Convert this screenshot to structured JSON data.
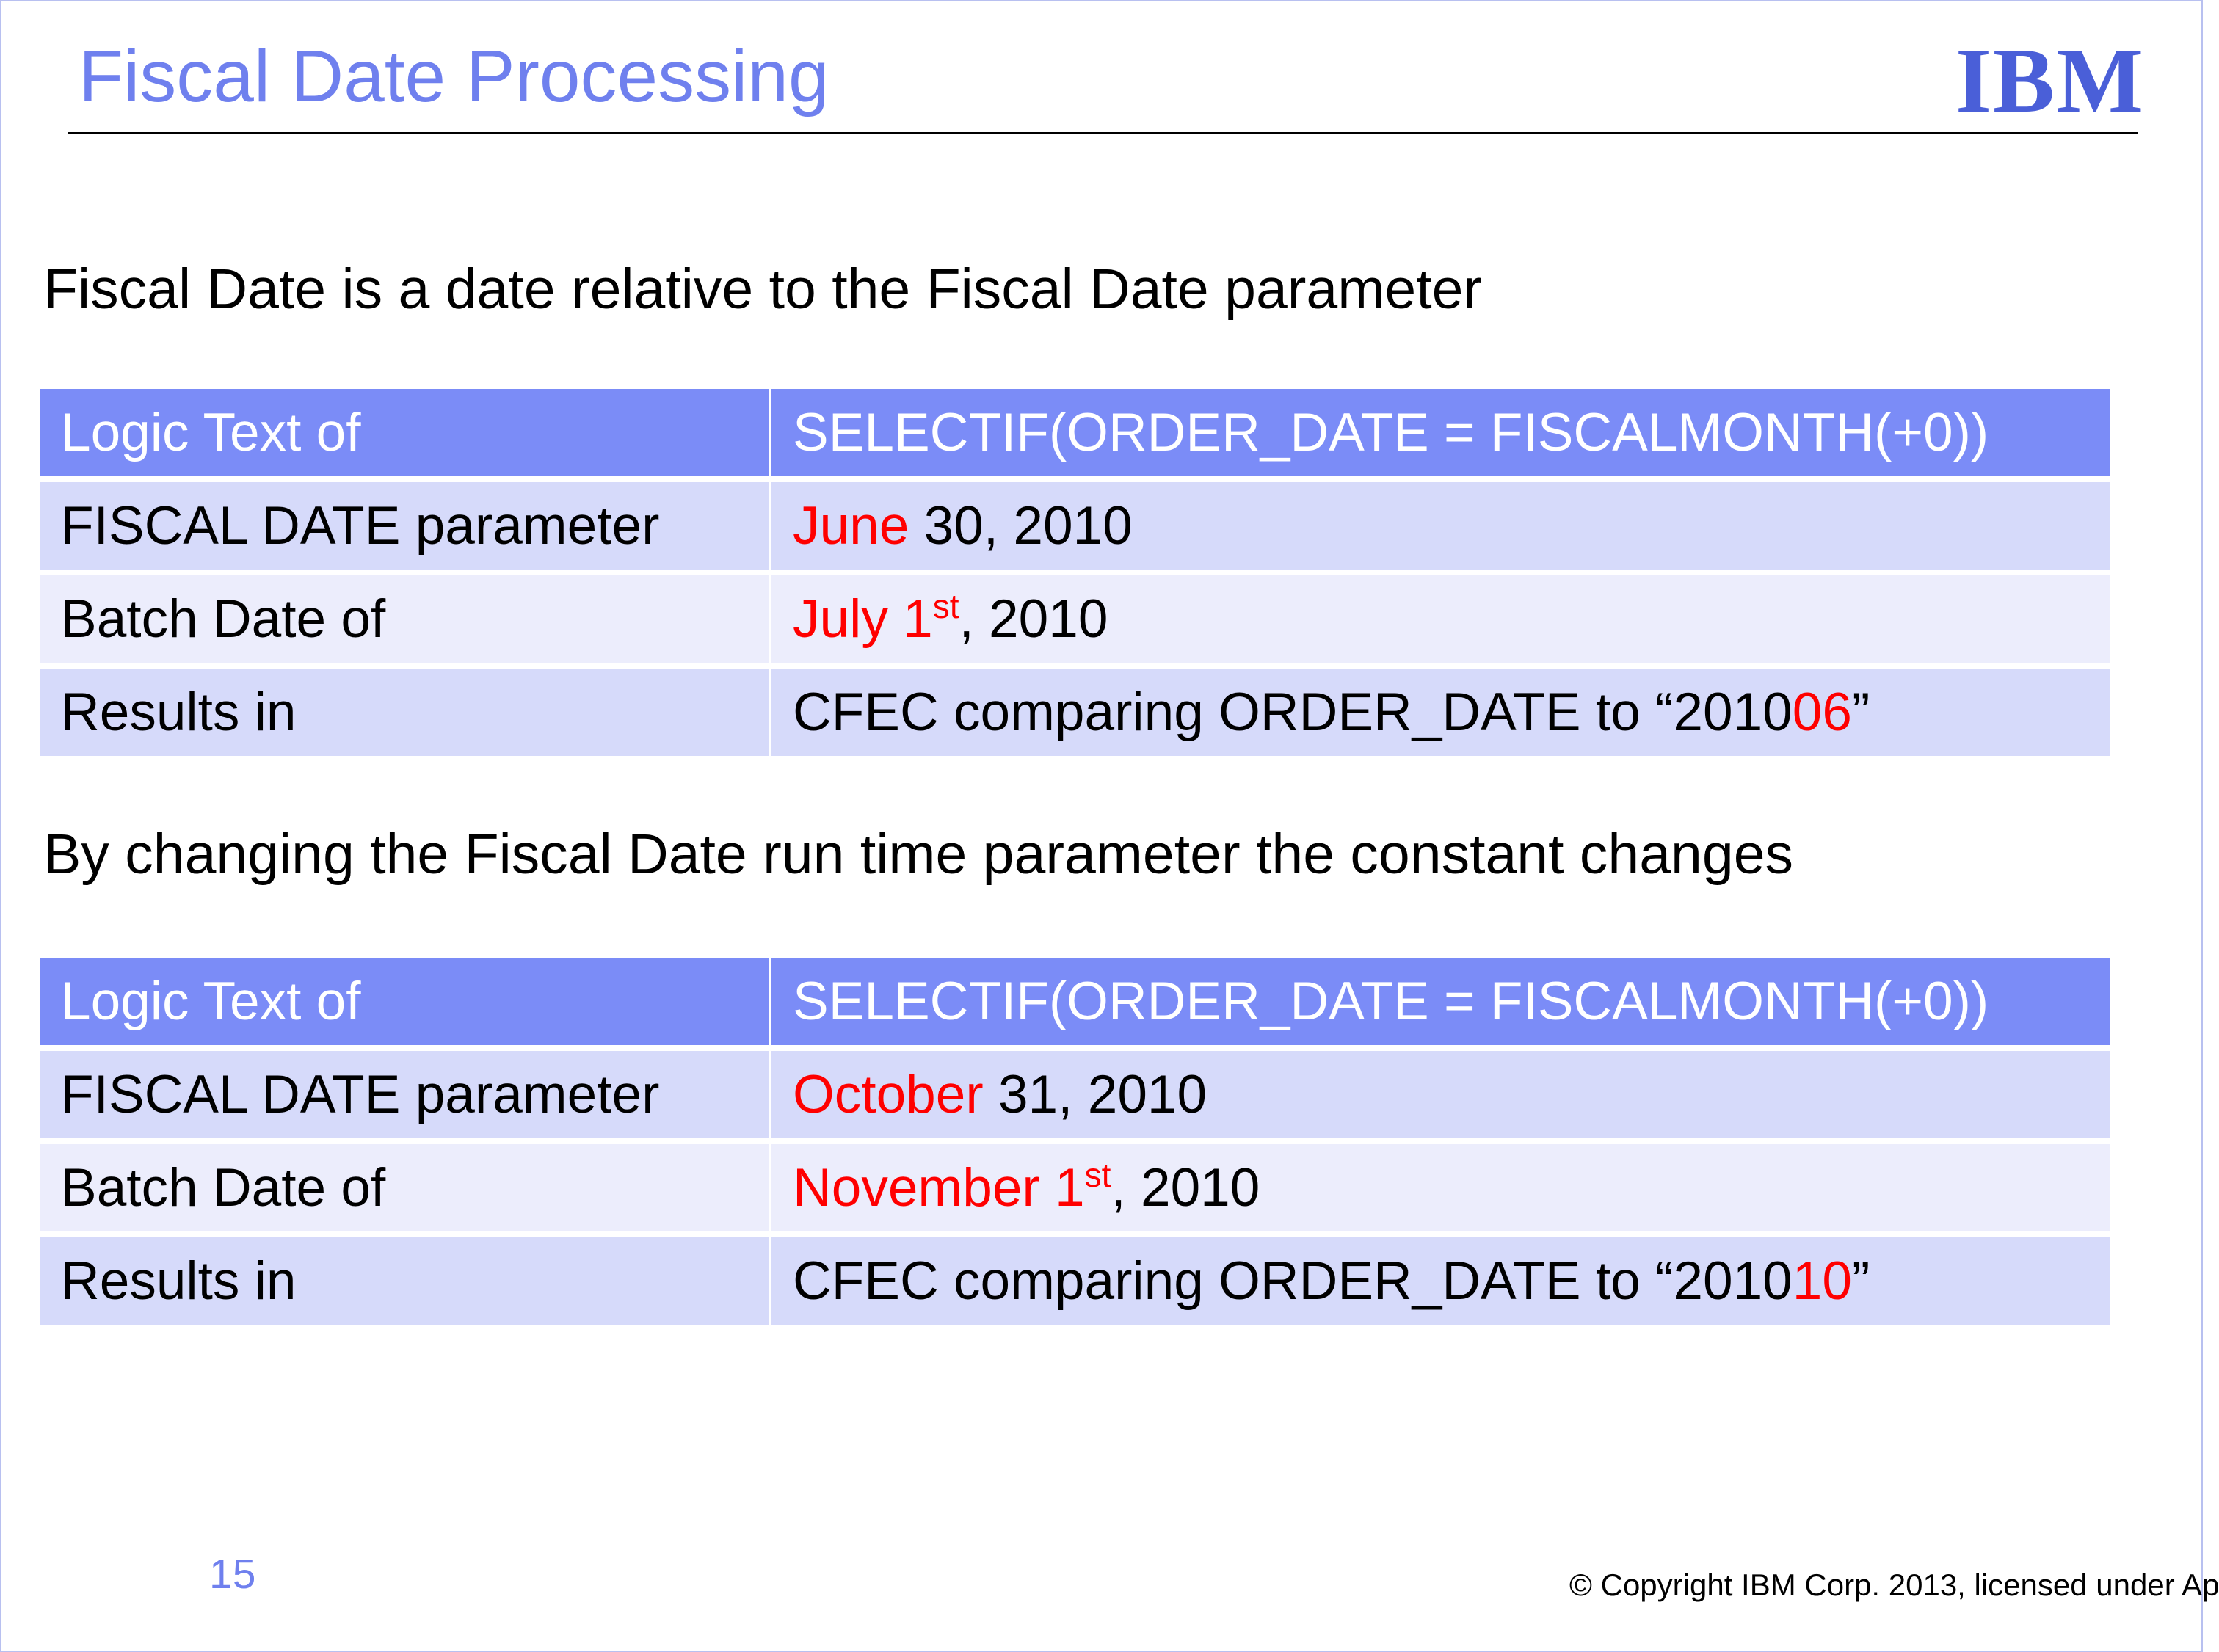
{
  "header": {
    "title": "Fiscal Date Processing",
    "logo": "IBM"
  },
  "paragraphs": [
    "Fiscal Date is a date relative to the Fiscal Date parameter",
    "By changing the Fiscal Date run time parameter the constant changes"
  ],
  "tables": [
    {
      "rows": [
        [
          [
            {
              "text": "Logic Text of"
            }
          ],
          [
            {
              "text": "SELECTIF(ORDER_DATE = FISCALMONTH(+0))"
            }
          ]
        ],
        [
          [
            {
              "text": "FISCAL DATE parameter"
            }
          ],
          [
            {
              "text": "June",
              "color": "#ff0000"
            },
            {
              "text": " 30, 2010"
            }
          ]
        ],
        [
          [
            {
              "text": "Batch Date of"
            }
          ],
          [
            {
              "text": "July 1",
              "color": "#ff0000"
            },
            {
              "text": "st",
              "color": "#ff0000",
              "sup": true
            },
            {
              "text": ", 2010"
            }
          ]
        ],
        [
          [
            {
              "text": "Results in"
            }
          ],
          [
            {
              "text": "CFEC comparing ORDER_DATE to “2010"
            },
            {
              "text": "06",
              "color": "#ff0000"
            },
            {
              "text": "”"
            }
          ]
        ]
      ]
    },
    {
      "rows": [
        [
          [
            {
              "text": "Logic Text of"
            }
          ],
          [
            {
              "text": "SELECTIF(ORDER_DATE = FISCALMONTH(+0))"
            }
          ]
        ],
        [
          [
            {
              "text": "FISCAL DATE parameter"
            }
          ],
          [
            {
              "text": "October",
              "color": "#ff0000"
            },
            {
              "text": " 31, 2010"
            }
          ]
        ],
        [
          [
            {
              "text": "Batch Date of"
            }
          ],
          [
            {
              "text": "November 1",
              "color": "#ff0000"
            },
            {
              "text": "st",
              "color": "#ff0000",
              "sup": true
            },
            {
              "text": ", 2010"
            }
          ]
        ],
        [
          [
            {
              "text": "Results in"
            }
          ],
          [
            {
              "text": "CFEC comparing ORDER_DATE to “2010"
            },
            {
              "text": "10",
              "color": "#ff0000"
            },
            {
              "text": "”"
            }
          ]
        ]
      ]
    }
  ],
  "footer": {
    "page_number": "15",
    "copyright": "© Copyright IBM Corp. 2013, licensed under Ap"
  }
}
